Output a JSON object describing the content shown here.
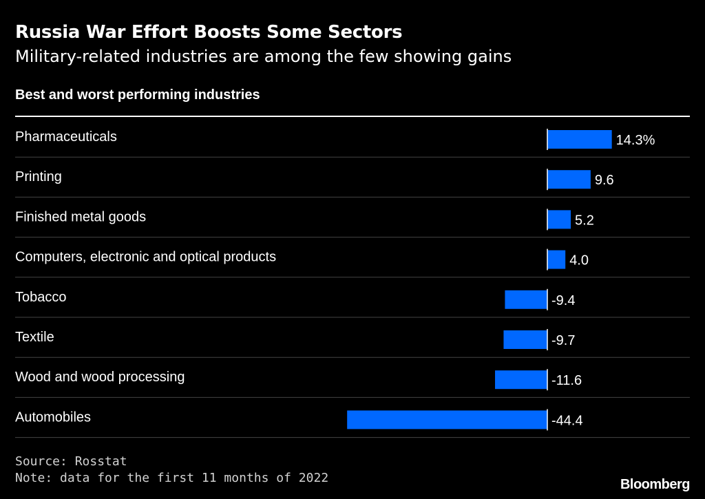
{
  "header": {
    "title": "Russia War Effort Boosts Some Sectors",
    "subtitle": "Military-related industries are among the few showing gains",
    "section_label": "Best and worst performing industries"
  },
  "footer": {
    "source": "Source: Rosstat",
    "note": "Note: data for the first 11 months of 2022",
    "brand": "Bloomberg"
  },
  "colors": {
    "background": "#000000",
    "bar": "#0068ff",
    "divider": "#444444"
  },
  "chart_data": {
    "type": "bar",
    "orientation": "horizontal",
    "categories": [
      "Pharmaceuticals",
      "Printing",
      "Finished metal goods",
      "Computers, electronic and optical products",
      "Tobacco",
      "Textile",
      "Wood and wood processing",
      "Automobiles"
    ],
    "values": [
      14.3,
      9.6,
      5.2,
      4.0,
      -9.4,
      -9.7,
      -11.6,
      -44.4
    ],
    "value_labels": [
      "14.3%",
      "9.6",
      "5.2",
      "4.0",
      "-9.4",
      "-9.7",
      "-11.6",
      "-44.4"
    ],
    "grid": false,
    "legend": "none"
  }
}
